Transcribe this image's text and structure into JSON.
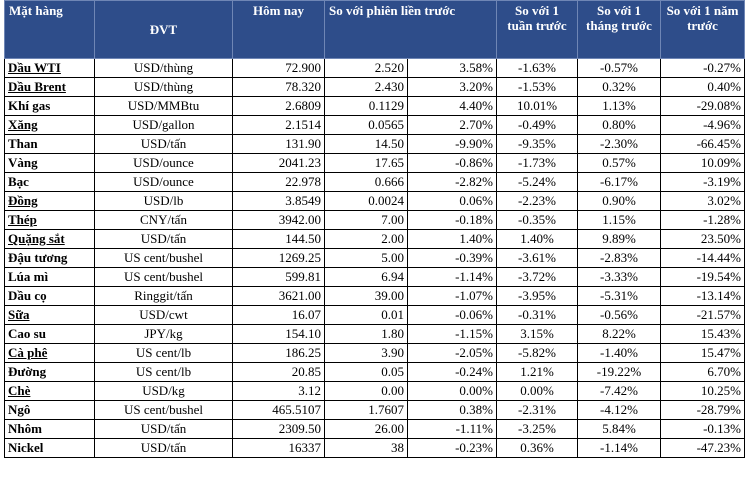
{
  "headers": {
    "name": "Mặt hàng",
    "unit": "ĐVT",
    "today": "Hôm nay",
    "prev_session": "So với phiên liền trước",
    "week": "So với 1 tuần trước",
    "month": "So với 1 tháng trước",
    "year": "So với 1 năm trước"
  },
  "rows": [
    {
      "name": "Dầu WTI",
      "unit": "USD/thùng",
      "today": "72.900",
      "chg": "2.520",
      "chg_pct": "3.58%",
      "week": "-1.63%",
      "month": "-0.57%",
      "year": "-0.27%"
    },
    {
      "name": "Dầu Brent",
      "unit": "USD/thùng",
      "today": "78.320",
      "chg": "2.430",
      "chg_pct": "3.20%",
      "week": "-1.53%",
      "month": "0.32%",
      "year": "0.40%"
    },
    {
      "name": "Khí gas",
      "unit": "USD/MMBtu",
      "today": "2.6809",
      "chg": "0.1129",
      "chg_pct": "4.40%",
      "week": "10.01%",
      "month": "1.13%",
      "year": "-29.08%"
    },
    {
      "name": "Xăng",
      "unit": "USD/gallon",
      "today": "2.1514",
      "chg": "0.0565",
      "chg_pct": "2.70%",
      "week": "-0.49%",
      "month": "0.80%",
      "year": "-4.96%"
    },
    {
      "name": "Than",
      "unit": "USD/tấn",
      "today": "131.90",
      "chg": "14.50",
      "chg_pct": "-9.90%",
      "week": "-9.35%",
      "month": "-2.30%",
      "year": "-66.45%"
    },
    {
      "name": "Vàng",
      "unit": "USD/ounce",
      "today": "2041.23",
      "chg": "17.65",
      "chg_pct": "-0.86%",
      "week": "-1.73%",
      "month": "0.57%",
      "year": "10.09%"
    },
    {
      "name": "Bạc",
      "unit": "USD/ounce",
      "today": "22.978",
      "chg": "0.666",
      "chg_pct": "-2.82%",
      "week": "-5.24%",
      "month": "-6.17%",
      "year": "-3.19%"
    },
    {
      "name": "Đồng",
      "unit": "USD/lb",
      "today": "3.8549",
      "chg": "0.0024",
      "chg_pct": "0.06%",
      "week": "-2.23%",
      "month": "0.90%",
      "year": "3.02%"
    },
    {
      "name": "Thép",
      "unit": "CNY/tấn",
      "today": "3942.00",
      "chg": "7.00",
      "chg_pct": "-0.18%",
      "week": "-0.35%",
      "month": "1.15%",
      "year": "-1.28%"
    },
    {
      "name": "Quặng sắt",
      "unit": "USD/tấn",
      "today": "144.50",
      "chg": "2.00",
      "chg_pct": "1.40%",
      "week": "1.40%",
      "month": "9.89%",
      "year": "23.50%"
    },
    {
      "name": "Đậu tương",
      "unit": "US cent/bushel",
      "today": "1269.25",
      "chg": "5.00",
      "chg_pct": "-0.39%",
      "week": "-3.61%",
      "month": "-2.83%",
      "year": "-14.44%"
    },
    {
      "name": "Lúa mì",
      "unit": "US cent/bushel",
      "today": "599.81",
      "chg": "6.94",
      "chg_pct": "-1.14%",
      "week": "-3.72%",
      "month": "-3.33%",
      "year": "-19.54%"
    },
    {
      "name": "Dầu cọ",
      "unit": "Ringgit/tấn",
      "today": "3621.00",
      "chg": "39.00",
      "chg_pct": "-1.07%",
      "week": "-3.95%",
      "month": "-5.31%",
      "year": "-13.14%"
    },
    {
      "name": "Sữa",
      "unit": "USD/cwt",
      "today": "16.07",
      "chg": "0.01",
      "chg_pct": "-0.06%",
      "week": "-0.31%",
      "month": "-0.56%",
      "year": "-21.57%"
    },
    {
      "name": "Cao su",
      "unit": "JPY/kg",
      "today": "154.10",
      "chg": "1.80",
      "chg_pct": "-1.15%",
      "week": "3.15%",
      "month": "8.22%",
      "year": "15.43%"
    },
    {
      "name": "Cà phê",
      "unit": "US cent/lb",
      "today": "186.25",
      "chg": "3.90",
      "chg_pct": "-2.05%",
      "week": "-5.82%",
      "month": "-1.40%",
      "year": "15.47%"
    },
    {
      "name": "Đường",
      "unit": "US cent/lb",
      "today": "20.85",
      "chg": "0.05",
      "chg_pct": "-0.24%",
      "week": "1.21%",
      "month": "-19.22%",
      "year": "6.70%"
    },
    {
      "name": "Chè",
      "unit": "USD/kg",
      "today": "3.12",
      "chg": "0.00",
      "chg_pct": "0.00%",
      "week": "0.00%",
      "month": "-7.42%",
      "year": "10.25%"
    },
    {
      "name": "Ngô",
      "unit": "US cent/bushel",
      "today": "465.5107",
      "chg": "1.7607",
      "chg_pct": "0.38%",
      "week": "-2.31%",
      "month": "-4.12%",
      "year": "-28.79%"
    },
    {
      "name": "Nhôm",
      "unit": "USD/tấn",
      "today": "2309.50",
      "chg": "26.00",
      "chg_pct": "-1.11%",
      "week": "-3.25%",
      "month": "5.84%",
      "year": "-0.13%"
    },
    {
      "name": "Nickel",
      "unit": "USD/tấn",
      "today": "16337",
      "chg": "38",
      "chg_pct": "-0.23%",
      "week": "0.36%",
      "month": "-1.14%",
      "year": "-47.23%"
    }
  ]
}
